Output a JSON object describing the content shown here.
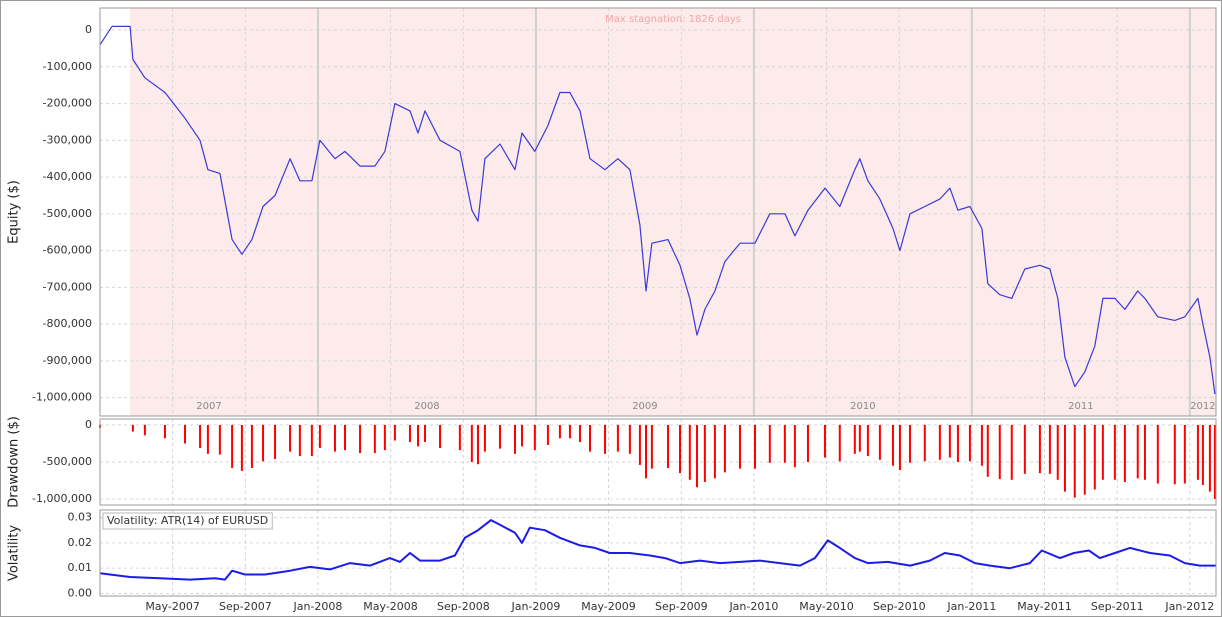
{
  "chart_data": [
    {
      "type": "line",
      "ylabel": "Equity ($)",
      "color": "#3a3ad8",
      "annotation": "Max stagnation: 1826 days",
      "stagnation": [
        2007.138,
        2012.12
      ],
      "year_bands": [
        {
          "value": 2007,
          "label": "2007"
        },
        {
          "value": 2008,
          "label": "2008"
        },
        {
          "value": 2009,
          "label": "2009"
        },
        {
          "value": 2010,
          "label": "2010"
        },
        {
          "value": 2011,
          "label": "2011"
        },
        {
          "value": 2012,
          "label": "2012"
        }
      ],
      "xlim": [
        2007.0,
        2012.12
      ],
      "ylim": [
        -1050000,
        60000
      ],
      "grid": true,
      "yticks": [
        {
          "value": 0,
          "label": "0"
        },
        {
          "value": -100000,
          "label": "-100,000"
        },
        {
          "value": -200000,
          "label": "-200,000"
        },
        {
          "value": -300000,
          "label": "-300,000"
        },
        {
          "value": -400000,
          "label": "-400,000"
        },
        {
          "value": -500000,
          "label": "-500,000"
        },
        {
          "value": -600000,
          "label": "-600,000"
        },
        {
          "value": -700000,
          "label": "-700,000"
        },
        {
          "value": -800000,
          "label": "-800,000"
        },
        {
          "value": -900000,
          "label": "-900,000"
        },
        {
          "value": -1000000,
          "label": "-1,000,000"
        }
      ],
      "x": [
        2007.0,
        2007.055,
        2007.138,
        2007.151,
        2007.206,
        2007.298,
        2007.39,
        2007.459,
        2007.495,
        2007.55,
        2007.606,
        2007.651,
        2007.697,
        2007.748,
        2007.803,
        2007.872,
        2007.917,
        2007.972,
        2008.009,
        2008.078,
        2008.124,
        2008.193,
        2008.261,
        2008.307,
        2008.353,
        2008.422,
        2008.459,
        2008.491,
        2008.56,
        2008.651,
        2008.706,
        2008.734,
        2008.766,
        2008.835,
        2008.904,
        2008.936,
        2008.995,
        2009.055,
        2009.11,
        2009.156,
        2009.202,
        2009.248,
        2009.317,
        2009.376,
        2009.431,
        2009.477,
        2009.505,
        2009.532,
        2009.606,
        2009.661,
        2009.706,
        2009.739,
        2009.775,
        2009.821,
        2009.867,
        2009.936,
        2010.005,
        2010.073,
        2010.142,
        2010.188,
        2010.248,
        2010.326,
        2010.394,
        2010.463,
        2010.486,
        2010.523,
        2010.578,
        2010.638,
        2010.67,
        2010.716,
        2010.784,
        2010.853,
        2010.899,
        2010.936,
        2010.991,
        2011.046,
        2011.073,
        2011.128,
        2011.183,
        2011.243,
        2011.312,
        2011.358,
        2011.394,
        2011.427,
        2011.472,
        2011.518,
        2011.564,
        2011.601,
        2011.656,
        2011.702,
        2011.761,
        2011.794,
        2011.853,
        2011.931,
        2011.977,
        2012.037,
        2012.06,
        2012.092,
        2012.115
      ],
      "values": [
        -40000,
        10000,
        10000,
        -80000,
        -130000,
        -170000,
        -240000,
        -300000,
        -380000,
        -390000,
        -570000,
        -610000,
        -570000,
        -480000,
        -450000,
        -350000,
        -410000,
        -410000,
        -300000,
        -350000,
        -330000,
        -370000,
        -370000,
        -330000,
        -200000,
        -220000,
        -280000,
        -220000,
        -300000,
        -330000,
        -490000,
        -520000,
        -350000,
        -310000,
        -380000,
        -280000,
        -330000,
        -260000,
        -170000,
        -170000,
        -220000,
        -350000,
        -380000,
        -350000,
        -380000,
        -530000,
        -710000,
        -580000,
        -570000,
        -640000,
        -730000,
        -830000,
        -760000,
        -710000,
        -630000,
        -580000,
        -580000,
        -500000,
        -500000,
        -560000,
        -490000,
        -430000,
        -480000,
        -380000,
        -350000,
        -410000,
        -460000,
        -540000,
        -600000,
        -500000,
        -480000,
        -460000,
        -430000,
        -490000,
        -480000,
        -540000,
        -690000,
        -720000,
        -730000,
        -650000,
        -640000,
        -650000,
        -730000,
        -890000,
        -970000,
        -930000,
        -860000,
        -730000,
        -730000,
        -760000,
        -710000,
        -730000,
        -780000,
        -790000,
        -780000,
        -730000,
        -800000,
        -890000,
        -990000
      ]
    },
    {
      "type": "bar",
      "ylabel": "Drawdown ($)",
      "color": "#ff0000",
      "xlim": [
        2007.0,
        2012.12
      ],
      "ylim": [
        -1080000,
        80000
      ],
      "grid": true,
      "yticks": [
        {
          "value": 0,
          "label": "0"
        },
        {
          "value": -500000,
          "label": "-500,000"
        },
        {
          "value": -1000000,
          "label": "-1,000,000"
        }
      ],
      "x": [
        2007.0,
        2007.055,
        2007.138,
        2007.151,
        2007.206,
        2007.298,
        2007.39,
        2007.459,
        2007.495,
        2007.55,
        2007.606,
        2007.651,
        2007.697,
        2007.748,
        2007.803,
        2007.872,
        2007.917,
        2007.972,
        2008.009,
        2008.078,
        2008.124,
        2008.193,
        2008.261,
        2008.307,
        2008.353,
        2008.422,
        2008.459,
        2008.491,
        2008.56,
        2008.651,
        2008.706,
        2008.734,
        2008.766,
        2008.835,
        2008.904,
        2008.936,
        2008.995,
        2009.055,
        2009.11,
        2009.156,
        2009.202,
        2009.248,
        2009.317,
        2009.376,
        2009.431,
        2009.477,
        2009.505,
        2009.532,
        2009.606,
        2009.661,
        2009.706,
        2009.739,
        2009.775,
        2009.821,
        2009.867,
        2009.936,
        2010.005,
        2010.073,
        2010.142,
        2010.188,
        2010.248,
        2010.326,
        2010.394,
        2010.463,
        2010.486,
        2010.523,
        2010.578,
        2010.638,
        2010.67,
        2010.716,
        2010.784,
        2010.853,
        2010.899,
        2010.936,
        2010.991,
        2011.046,
        2011.073,
        2011.128,
        2011.183,
        2011.243,
        2011.312,
        2011.358,
        2011.394,
        2011.427,
        2011.472,
        2011.518,
        2011.564,
        2011.601,
        2011.656,
        2011.702,
        2011.761,
        2011.794,
        2011.853,
        2011.931,
        2011.977,
        2012.037,
        2012.06,
        2012.092,
        2012.115
      ],
      "values": [
        -40000,
        0,
        0,
        -90000,
        -140000,
        -180000,
        -250000,
        -310000,
        -390000,
        -400000,
        -580000,
        -620000,
        -580000,
        -490000,
        -460000,
        -360000,
        -420000,
        -420000,
        -310000,
        -360000,
        -340000,
        -380000,
        -380000,
        -340000,
        -210000,
        -230000,
        -290000,
        -230000,
        -310000,
        -340000,
        -500000,
        -530000,
        -360000,
        -320000,
        -390000,
        -290000,
        -340000,
        -270000,
        -180000,
        -180000,
        -230000,
        -360000,
        -390000,
        -360000,
        -390000,
        -540000,
        -720000,
        -590000,
        -580000,
        -650000,
        -740000,
        -840000,
        -770000,
        -720000,
        -640000,
        -590000,
        -590000,
        -510000,
        -510000,
        -570000,
        -500000,
        -440000,
        -490000,
        -390000,
        -360000,
        -420000,
        -470000,
        -550000,
        -610000,
        -510000,
        -490000,
        -470000,
        -440000,
        -500000,
        -490000,
        -550000,
        -700000,
        -730000,
        -740000,
        -660000,
        -650000,
        -660000,
        -740000,
        -900000,
        -980000,
        -940000,
        -870000,
        -740000,
        -740000,
        -770000,
        -720000,
        -740000,
        -790000,
        -800000,
        -790000,
        -740000,
        -810000,
        -900000,
        -1000000
      ]
    },
    {
      "type": "line",
      "ylabel": "Volatility",
      "xlim": [
        2007.0,
        2012.12
      ],
      "ylim": [
        -0.001,
        0.033
      ],
      "grid": true,
      "yticks": [
        0.03,
        0.02,
        0.01,
        {
          "value": 0,
          "label": "0.00"
        }
      ],
      "xticks": [
        {
          "value": 2007.333,
          "label": "May-2007"
        },
        {
          "value": 2007.667,
          "label": "Sep-2007"
        },
        {
          "value": 2008.0,
          "label": "Jan-2008"
        },
        {
          "value": 2008.333,
          "label": "May-2008"
        },
        {
          "value": 2008.667,
          "label": "Sep-2008"
        },
        {
          "value": 2009.0,
          "label": "Jan-2009"
        },
        {
          "value": 2009.333,
          "label": "May-2009"
        },
        {
          "value": 2009.667,
          "label": "Sep-2009"
        },
        {
          "value": 2010.0,
          "label": "Jan-2010"
        },
        {
          "value": 2010.333,
          "label": "May-2010"
        },
        {
          "value": 2010.667,
          "label": "Sep-2010"
        },
        {
          "value": 2011.0,
          "label": "Jan-2011"
        },
        {
          "value": 2011.333,
          "label": "May-2011"
        },
        {
          "value": 2011.667,
          "label": "Sep-2011"
        },
        {
          "value": 2012.0,
          "label": "Jan-2012"
        }
      ],
      "x": [
        2007.0,
        2007.138,
        2007.275,
        2007.413,
        2007.528,
        2007.573,
        2007.606,
        2007.665,
        2007.757,
        2007.872,
        2007.963,
        2008.055,
        2008.147,
        2008.239,
        2008.33,
        2008.376,
        2008.422,
        2008.468,
        2008.56,
        2008.628,
        2008.674,
        2008.734,
        2008.794,
        2008.839,
        2008.904,
        2008.936,
        2008.972,
        2009.041,
        2009.11,
        2009.202,
        2009.271,
        2009.339,
        2009.431,
        2009.523,
        2009.592,
        2009.661,
        2009.752,
        2009.844,
        2009.936,
        2010.028,
        2010.119,
        2010.211,
        2010.28,
        2010.339,
        2010.394,
        2010.463,
        2010.523,
        2010.615,
        2010.716,
        2010.807,
        2010.876,
        2010.945,
        2011.014,
        2011.083,
        2011.174,
        2011.266,
        2011.321,
        2011.404,
        2011.468,
        2011.537,
        2011.587,
        2011.656,
        2011.725,
        2011.817,
        2011.908,
        2011.977,
        2012.046,
        2012.119
      ],
      "series": [
        {
          "name": "Volatility: ATR(14) of EURUSD",
          "color": "#1c1ce8",
          "values": [
            0.008,
            0.0065,
            0.006,
            0.0055,
            0.006,
            0.0055,
            0.009,
            0.0075,
            0.0075,
            0.009,
            0.0105,
            0.0095,
            0.012,
            0.011,
            0.014,
            0.0125,
            0.016,
            0.013,
            0.013,
            0.015,
            0.022,
            0.025,
            0.029,
            0.027,
            0.024,
            0.02,
            0.026,
            0.025,
            0.022,
            0.019,
            0.018,
            0.016,
            0.016,
            0.015,
            0.014,
            0.012,
            0.013,
            0.012,
            0.0125,
            0.013,
            0.012,
            0.011,
            0.014,
            0.021,
            0.018,
            0.014,
            0.012,
            0.0125,
            0.011,
            0.013,
            0.016,
            0.015,
            0.012,
            0.011,
            0.01,
            0.012,
            0.017,
            0.014,
            0.016,
            0.017,
            0.014,
            0.016,
            0.018,
            0.016,
            0.015,
            0.012,
            0.011,
            0.011
          ]
        }
      ]
    }
  ]
}
